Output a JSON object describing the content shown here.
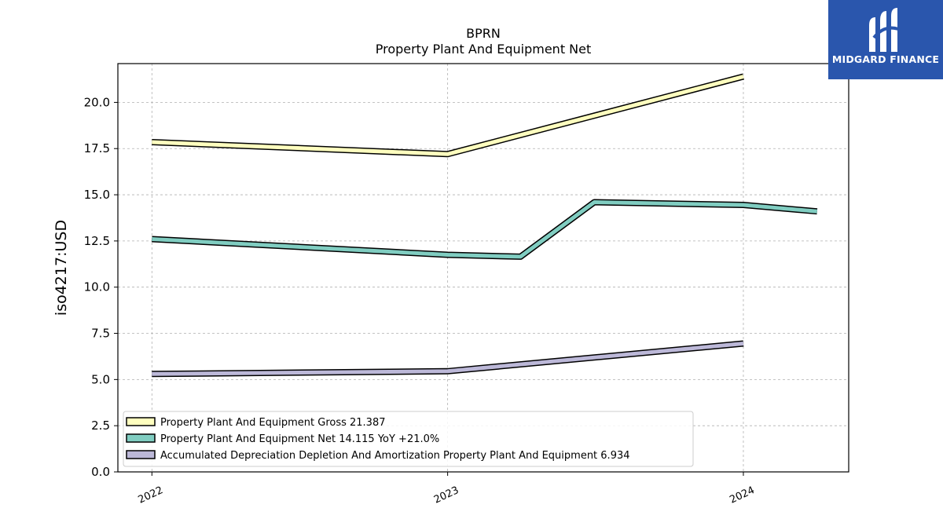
{
  "chart_data": {
    "type": "line",
    "title": "BPRN",
    "subtitle": "Property Plant And Equipment Net",
    "ylabel": "iso4217:USD",
    "xlabel": "",
    "ylim": [
      0,
      22.1
    ],
    "xlim": [
      "2021-11-20",
      "2024-05-10"
    ],
    "yticks": [
      0.0,
      2.5,
      5.0,
      7.5,
      10.0,
      12.5,
      15.0,
      17.5,
      20.0
    ],
    "ytick_labels": [
      "0.0",
      "2.5",
      "5.0",
      "7.5",
      "10.0",
      "12.5",
      "15.0",
      "17.5",
      "20.0"
    ],
    "xticks": [
      "2022-01-01",
      "2023-01-01",
      "2024-01-01"
    ],
    "xtick_labels": [
      "2022",
      "2023",
      "2024"
    ],
    "grid": true,
    "legend_position": "lower-left",
    "series": [
      {
        "name": "Property Plant And Equipment Gross",
        "legend": "Property Plant And Equipment Gross  21.387",
        "color": "#ffffbf",
        "points": [
          {
            "x": "2022-01-01",
            "y": 17.85
          },
          {
            "x": "2023-01-01",
            "y": 17.2
          },
          {
            "x": "2024-01-01",
            "y": 21.4
          }
        ]
      },
      {
        "name": "Property Plant And Equipment Net",
        "legend": "Property Plant And Equipment Net  14.115 YoY +21.0%",
        "color": "#80cdc1",
        "points": [
          {
            "x": "2022-01-01",
            "y": 12.6
          },
          {
            "x": "2023-01-01",
            "y": 11.75
          },
          {
            "x": "2023-04-01",
            "y": 11.65
          },
          {
            "x": "2023-07-01",
            "y": 14.6
          },
          {
            "x": "2024-01-01",
            "y": 14.45
          },
          {
            "x": "2024-04-01",
            "y": 14.1
          }
        ]
      },
      {
        "name": "Accumulated Depreciation Depletion And Amortization Property Plant And Equipment",
        "legend": "Accumulated Depreciation Depletion And Amortization Property Plant And Equipment  6.934",
        "color": "#bcb8d8",
        "points": [
          {
            "x": "2022-01-01",
            "y": 5.3
          },
          {
            "x": "2023-01-01",
            "y": 5.45
          },
          {
            "x": "2024-01-01",
            "y": 6.95
          }
        ]
      }
    ]
  },
  "logo": {
    "text": "MIDGARD FINANCE",
    "background": "#2a56ad"
  }
}
